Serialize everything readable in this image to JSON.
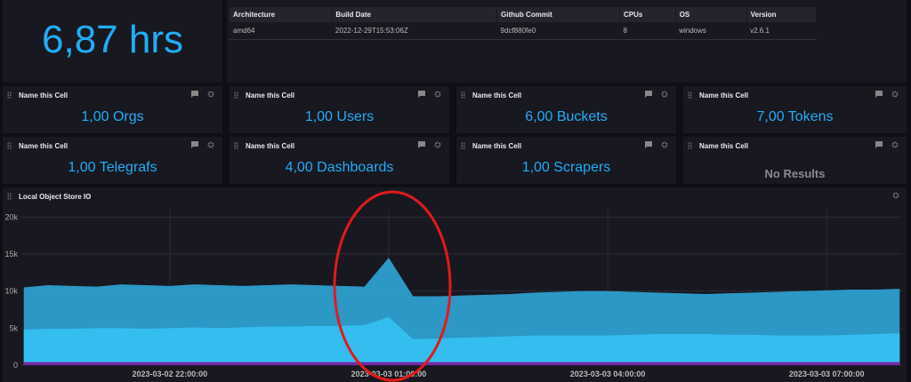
{
  "uptime": {
    "value": "6,87 hrs"
  },
  "info_table": {
    "columns": [
      "Architecture",
      "Build Date",
      "Github Commit",
      "CPUs",
      "OS",
      "Version"
    ],
    "rows": [
      [
        "amd64",
        "2022-12-29T15:53:06Z",
        "9dcf880fe0",
        "8",
        "windows",
        "v2.6.1"
      ]
    ]
  },
  "cells": [
    {
      "title": "Name this Cell",
      "value": "1,00 Orgs"
    },
    {
      "title": "Name this Cell",
      "value": "1,00 Users"
    },
    {
      "title": "Name this Cell",
      "value": "6,00 Buckets"
    },
    {
      "title": "Name this Cell",
      "value": "7,00 Tokens"
    },
    {
      "title": "Name this Cell",
      "value": "1,00 Telegrafs"
    },
    {
      "title": "Name this Cell",
      "value": "4,00 Dashboards"
    },
    {
      "title": "Name this Cell",
      "value": "1,00 Scrapers"
    },
    {
      "title": "Name this Cell",
      "value": "No Results"
    }
  ],
  "chart_data": {
    "type": "area",
    "title": "Local Object Store IO",
    "x": [
      "2023-03-02 20:00:00",
      "2023-03-02 20:20:00",
      "2023-03-02 20:40:00",
      "2023-03-02 21:00:00",
      "2023-03-02 21:20:00",
      "2023-03-02 21:40:00",
      "2023-03-02 22:00:00",
      "2023-03-02 22:20:00",
      "2023-03-02 22:40:00",
      "2023-03-02 23:00:00",
      "2023-03-02 23:20:00",
      "2023-03-02 23:40:00",
      "2023-03-03 00:00:00",
      "2023-03-03 00:20:00",
      "2023-03-03 00:40:00",
      "2023-03-03 01:00:00",
      "2023-03-03 01:20:00",
      "2023-03-03 01:40:00",
      "2023-03-03 02:00:00",
      "2023-03-03 02:20:00",
      "2023-03-03 02:40:00",
      "2023-03-03 03:00:00",
      "2023-03-03 03:20:00",
      "2023-03-03 03:40:00",
      "2023-03-03 04:00:00",
      "2023-03-03 04:20:00",
      "2023-03-03 04:40:00",
      "2023-03-03 05:00:00",
      "2023-03-03 05:20:00",
      "2023-03-03 05:40:00",
      "2023-03-03 06:00:00",
      "2023-03-03 06:20:00",
      "2023-03-03 06:40:00",
      "2023-03-03 07:00:00",
      "2023-03-03 07:20:00",
      "2023-03-03 07:40:00",
      "2023-03-03 08:00:00"
    ],
    "series": [
      {
        "color": "#2c9fd0",
        "values": [
          10500,
          10800,
          10700,
          10600,
          10900,
          10800,
          10700,
          10900,
          10800,
          10700,
          10800,
          10900,
          10800,
          10700,
          10600,
          14500,
          9300,
          9300,
          9400,
          9500,
          9600,
          9800,
          9900,
          10000,
          10000,
          9900,
          9800,
          9700,
          9600,
          9700,
          9800,
          9900,
          10000,
          10100,
          10200,
          10200,
          10300
        ]
      },
      {
        "color": "#35c0f2",
        "values": [
          4800,
          4900,
          4900,
          5000,
          5000,
          4900,
          5000,
          5100,
          5000,
          5100,
          5200,
          5200,
          5300,
          5300,
          5400,
          6500,
          3500,
          3600,
          3700,
          3800,
          3900,
          4000,
          4000,
          4000,
          4000,
          4100,
          4200,
          4200,
          4200,
          4100,
          4100,
          4000,
          4000,
          4000,
          4100,
          4200,
          4300
        ]
      },
      {
        "color": "#7b1fa2",
        "values": [
          400,
          400,
          400,
          400,
          400,
          400,
          400,
          400,
          400,
          400,
          400,
          400,
          400,
          400,
          400,
          400,
          400,
          400,
          400,
          400,
          400,
          400,
          400,
          400,
          400,
          400,
          400,
          400,
          400,
          400,
          400,
          400,
          400,
          400,
          400,
          400,
          400
        ]
      }
    ],
    "xlim": [
      "2023-03-02 19:58:00",
      "2023-03-03 08:02:00"
    ],
    "xticks": [
      "2023-03-02 22:00:00",
      "2023-03-03 01:00:00",
      "2023-03-03 04:00:00",
      "2023-03-03 07:00:00"
    ],
    "ylim": [
      0,
      21000
    ],
    "yticks": [
      0,
      {
        "value": 5000,
        "label": "5k"
      },
      {
        "value": 10000,
        "label": "10k"
      },
      {
        "value": 15000,
        "label": "15k"
      },
      {
        "value": 20000,
        "label": "20k"
      }
    ],
    "grid": true
  }
}
